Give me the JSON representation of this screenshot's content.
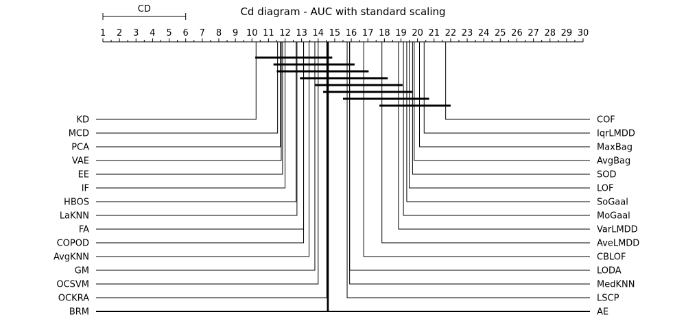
{
  "chart_data": {
    "type": "critical-difference-diagram",
    "title": "Cd diagram - AUC with standard scaling",
    "axis": {
      "min": 1,
      "max": 30,
      "tick_labels": [
        "1",
        "2",
        "3",
        "4",
        "5",
        "6",
        "7",
        "8",
        "9",
        "10",
        "11",
        "12",
        "13",
        "14",
        "15",
        "16",
        "17",
        "18",
        "19",
        "20",
        "21",
        "22",
        "23",
        "24",
        "25",
        "26",
        "27",
        "28",
        "29",
        "30"
      ],
      "minor_ticks": true,
      "placement": "top"
    },
    "cd": {
      "label": "CD",
      "value": 5.0
    },
    "left_methods": [
      {
        "name": "KD",
        "rank": 10.25
      },
      {
        "name": "MCD",
        "rank": 11.55
      },
      {
        "name": "PCA",
        "rank": 11.72
      },
      {
        "name": "VAE",
        "rank": 11.77
      },
      {
        "name": "EE",
        "rank": 11.85
      },
      {
        "name": "IF",
        "rank": 12.0
      },
      {
        "name": "HBOS",
        "rank": 12.67
      },
      {
        "name": "LaKNN",
        "rank": 12.72
      },
      {
        "name": "FA",
        "rank": 13.12
      },
      {
        "name": "COPOD",
        "rank": 13.12
      },
      {
        "name": "AvgKNN",
        "rank": 13.45
      },
      {
        "name": "GM",
        "rank": 13.8
      },
      {
        "name": "OCSVM",
        "rank": 14.0
      },
      {
        "name": "OCKRA",
        "rank": 14.52
      },
      {
        "name": "BRM",
        "rank": 14.57
      }
    ],
    "right_methods": [
      {
        "name": "COF",
        "rank": 21.7
      },
      {
        "name": "IqrLMDD",
        "rank": 20.4
      },
      {
        "name": "MaxBag",
        "rank": 20.12
      },
      {
        "name": "AvgBag",
        "rank": 19.8
      },
      {
        "name": "SOD",
        "rank": 19.7
      },
      {
        "name": "LOF",
        "rank": 19.5
      },
      {
        "name": "SoGaal",
        "rank": 19.35
      },
      {
        "name": "MoGaal",
        "rank": 19.15
      },
      {
        "name": "VarLMDD",
        "rank": 18.85
      },
      {
        "name": "AveLMDD",
        "rank": 17.85
      },
      {
        "name": "CBLOF",
        "rank": 16.75
      },
      {
        "name": "LODA",
        "rank": 15.9
      },
      {
        "name": "MedKNN",
        "rank": 15.9
      },
      {
        "name": "LSCP",
        "rank": 15.75
      },
      {
        "name": "AE",
        "rank": 14.6
      }
    ],
    "cliques": [
      [
        10.2,
        14.85
      ],
      [
        11.3,
        16.2
      ],
      [
        11.5,
        17.05
      ],
      [
        12.9,
        18.2
      ],
      [
        13.8,
        19.1
      ],
      [
        14.3,
        19.7
      ],
      [
        15.5,
        20.7
      ],
      [
        17.7,
        22.0
      ]
    ]
  }
}
